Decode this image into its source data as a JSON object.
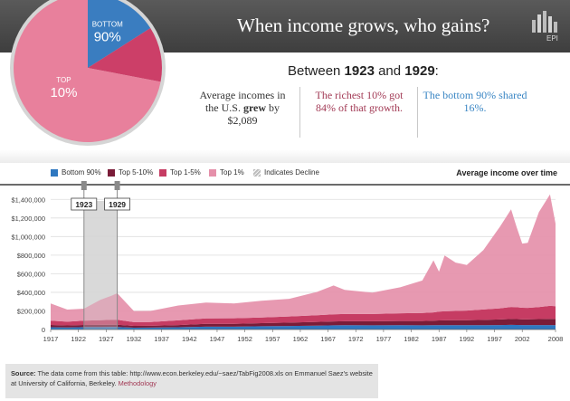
{
  "header": {
    "title": "When income grows, who gains?",
    "logo_text": "EPI",
    "logo_icon": "bar-chart-logo-icon"
  },
  "pie": {
    "slices": [
      {
        "label_line1": "BOTTOM",
        "label_line2": "90%",
        "value": 16,
        "color": "#3a7dc0"
      },
      {
        "label_line1": "",
        "label_line2": "",
        "value": 12,
        "color": "#cc3f68"
      },
      {
        "label_line1": "TOP",
        "label_line2": "10%",
        "value": 72,
        "color": "#e8809c"
      }
    ]
  },
  "summary": {
    "between_prefix": "Between ",
    "year_start": "1923",
    "between_mid": " and ",
    "year_end": "1929",
    "between_suffix": ":",
    "col1_a": "Average incomes in the U.S. ",
    "col1_b": "grew",
    "col1_c": " by $2,089",
    "col2": "The richest 10% got 84% of that growth.",
    "col3": "The bottom 90% shared 16%."
  },
  "legend": {
    "items": [
      {
        "label": "Bottom 90%",
        "color": "#2f78c0"
      },
      {
        "label": "Top 5-10%",
        "color": "#7a1c38"
      },
      {
        "label": "Top 1-5%",
        "color": "#c63c63"
      },
      {
        "label": "Top 1%",
        "color": "#e590aa"
      },
      {
        "label": "Indicates Decline",
        "color": "#bdbdbd"
      }
    ],
    "title": "Average income over time"
  },
  "chart_data": {
    "type": "area",
    "stacked": true,
    "ylim": [
      0,
      1500000
    ],
    "yticks": [
      0,
      200000,
      400000,
      600000,
      800000,
      1000000,
      1200000,
      1400000
    ],
    "ytick_labels": [
      "0",
      "$200,000",
      "$400,000",
      "$600,000",
      "$800,000",
      "$1,000,000",
      "$1,200,000",
      "$1,400,000"
    ],
    "xlim": [
      1917,
      2008
    ],
    "xticks": [
      1917,
      1922,
      1927,
      1932,
      1937,
      1942,
      1947,
      1952,
      1957,
      1962,
      1967,
      1972,
      1977,
      1982,
      1987,
      1992,
      1997,
      2002,
      2008
    ],
    "x": [
      1917,
      1920,
      1923,
      1926,
      1928,
      1929,
      1932,
      1935,
      1940,
      1945,
      1950,
      1955,
      1960,
      1965,
      1968,
      1970,
      1975,
      1980,
      1984,
      1986,
      1987,
      1988,
      1990,
      1992,
      1995,
      1998,
      2000,
      2001,
      2002,
      2003,
      2005,
      2007,
      2008
    ],
    "series": [
      {
        "name": "Bottom 90%",
        "color": "#2f78c0",
        "values": [
          24000,
          22000,
          25000,
          25000,
          26000,
          26000,
          19000,
          20000,
          24000,
          30000,
          30000,
          35000,
          38000,
          42000,
          45000,
          46000,
          45000,
          46000,
          45000,
          46000,
          47000,
          47000,
          47000,
          46000,
          46000,
          48000,
          50000,
          49000,
          48000,
          48000,
          48000,
          48000,
          47000
        ]
      },
      {
        "name": "Top 5-10%",
        "color": "#7a1c38",
        "values": [
          25000,
          22000,
          24000,
          25000,
          26000,
          26000,
          20000,
          20000,
          24000,
          30000,
          31000,
          33000,
          36000,
          40000,
          42000,
          43000,
          44000,
          46000,
          47000,
          48000,
          50000,
          51000,
          53000,
          54000,
          57000,
          60000,
          63000,
          63000,
          62000,
          62000,
          64000,
          66000,
          66000
        ]
      },
      {
        "name": "Top 1-5%",
        "color": "#c63c63",
        "values": [
          45000,
          40000,
          45000,
          50000,
          52000,
          52000,
          40000,
          40000,
          50000,
          60000,
          60000,
          62000,
          66000,
          72000,
          76000,
          78000,
          78000,
          82000,
          85000,
          90000,
          95000,
          98000,
          100000,
          104000,
          112000,
          120000,
          130000,
          128000,
          124000,
          123000,
          130000,
          140000,
          137000
        ]
      },
      {
        "name": "Top 1%",
        "color": "#e590aa",
        "values": [
          186000,
          130000,
          130000,
          220000,
          260000,
          286000,
          120000,
          120000,
          160000,
          170000,
          160000,
          180000,
          190000,
          250000,
          310000,
          260000,
          230000,
          280000,
          350000,
          560000,
          430000,
          600000,
          520000,
          490000,
          640000,
          880000,
          1050000,
          860000,
          690000,
          700000,
          1020000,
          1200000,
          890000
        ]
      }
    ],
    "highlight_range": [
      1923,
      1929
    ],
    "highlight_labels": [
      "1923",
      "1929"
    ]
  },
  "footer": {
    "source_label": "Source:",
    "source_text": " The data come from this table: http://www.econ.berkeley.edu/~saez/TabFig2008.xls on Emmanuel Saez's website at University of California, Berkeley. ",
    "methodology_link": "Methodology",
    "link_color": "#a23a55"
  }
}
